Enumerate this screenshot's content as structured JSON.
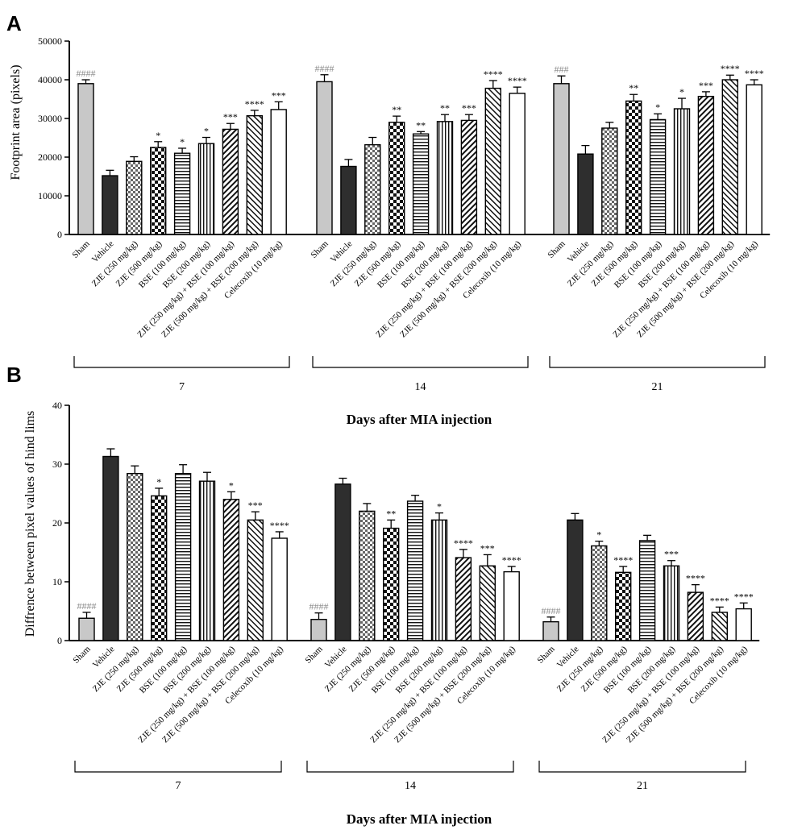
{
  "patterns": {
    "Sham": "solid-light",
    "Vehicle": "solid-dark",
    "ZJE (250 mg/kg)": "checker-small",
    "ZJE (500 mg/kg)": "checker-large",
    "BSE (100 mg/kg)": "horizontal",
    "BSE (200 mg/kg)": "vertical",
    "ZJE (250 mg/kg) + BSE (100 mg/kg)": "diag-up",
    "ZJE (500 mg/kg) + BSE (200 mg/kg)": "diag-down",
    "Celecoxib (10 mg/kg)": "white"
  },
  "colors": {
    "sham": "#c8c8c8",
    "vehicle": "#2e2e2e",
    "hash": "#8a8a8a",
    "axis": "#000000"
  },
  "chart_data": [
    {
      "panel": "A",
      "type": "bar",
      "ylabel": "Footprint area (pixels)",
      "xlabel": "Days after MIA injection",
      "ylim": [
        0,
        50000
      ],
      "yticks": [
        0,
        10000,
        20000,
        30000,
        40000,
        50000
      ],
      "categories": [
        "Sham",
        "Vehicle",
        "ZJE (250 mg/kg)",
        "ZJE (500 mg/kg)",
        "BSE (100 mg/kg)",
        "BSE (200 mg/kg)",
        "ZJE (250 mg/kg) + BSE (100 mg/kg)",
        "ZJE (500 mg/kg) + BSE (200 mg/kg)",
        "Celecoxib (10 mg/kg)"
      ],
      "groups": [
        {
          "label": "7",
          "values": [
            39000,
            15200,
            18900,
            22500,
            21000,
            23500,
            27200,
            30700,
            32300
          ],
          "errors": [
            1000,
            1400,
            1200,
            1500,
            1300,
            1600,
            1500,
            1400,
            2000
          ],
          "sig": [
            "####",
            "",
            "",
            "*",
            "*",
            "*",
            "***",
            "****",
            "***"
          ]
        },
        {
          "label": "14",
          "values": [
            39500,
            17600,
            23200,
            29000,
            26000,
            29200,
            29500,
            37800,
            36500
          ],
          "errors": [
            1800,
            1800,
            1900,
            1600,
            600,
            1800,
            1500,
            2000,
            1600
          ],
          "sig": [
            "####",
            "",
            "",
            "**",
            "**",
            "**",
            "***",
            "****",
            "****"
          ]
        },
        {
          "label": "21",
          "values": [
            39000,
            20800,
            27500,
            34500,
            29700,
            32500,
            35700,
            40000,
            38700
          ],
          "errors": [
            2000,
            2200,
            1500,
            1700,
            1500,
            2700,
            1200,
            1200,
            1300
          ],
          "sig": [
            "###",
            "",
            "",
            "**",
            "*",
            "*",
            "***",
            "****",
            "****"
          ]
        }
      ]
    },
    {
      "panel": "B",
      "type": "bar",
      "ylabel": "Diffrence between pixel values of hind lims",
      "xlabel": "Days after MIA injection",
      "ylim": [
        0,
        40
      ],
      "yticks": [
        0,
        10,
        20,
        30,
        40
      ],
      "categories": [
        "Sham",
        "Vehicle",
        "ZJE (250 mg/kg)",
        "ZJE (500 mg/kg)",
        "BSE (100 mg/kg)",
        "BSE (200 mg/kg)",
        "ZJE (250 mg/kg) + BSE (100 mg/kg)",
        "ZJE (500 mg/kg) + BSE (200 mg/kg)",
        "Celecoxib (10 mg/kg)"
      ],
      "groups": [
        {
          "label": "7",
          "values": [
            3.8,
            31.3,
            28.4,
            24.6,
            28.4,
            27.1,
            24.0,
            20.5,
            17.4
          ],
          "errors": [
            1.0,
            1.3,
            1.3,
            1.3,
            1.5,
            1.5,
            1.3,
            1.4,
            1.1
          ],
          "sig": [
            "####",
            "",
            "",
            "*",
            "",
            "",
            "*",
            "***",
            "****"
          ]
        },
        {
          "label": "14",
          "values": [
            3.6,
            26.6,
            22.0,
            19.1,
            23.7,
            20.5,
            14.1,
            12.7,
            11.7
          ],
          "errors": [
            1.1,
            1.0,
            1.3,
            1.4,
            1.0,
            1.2,
            1.4,
            1.9,
            0.9
          ],
          "sig": [
            "####",
            "",
            "",
            "**",
            "",
            "*",
            "****",
            "***",
            "****"
          ]
        },
        {
          "label": "21",
          "values": [
            3.2,
            20.5,
            16.1,
            11.6,
            17.0,
            12.7,
            8.2,
            4.8,
            5.4
          ],
          "errors": [
            0.8,
            1.1,
            0.8,
            1.0,
            0.9,
            0.9,
            1.3,
            0.9,
            1.0
          ],
          "sig": [
            "####",
            "",
            "*",
            "****",
            "",
            "***",
            "****",
            "****",
            "****"
          ]
        }
      ]
    }
  ]
}
